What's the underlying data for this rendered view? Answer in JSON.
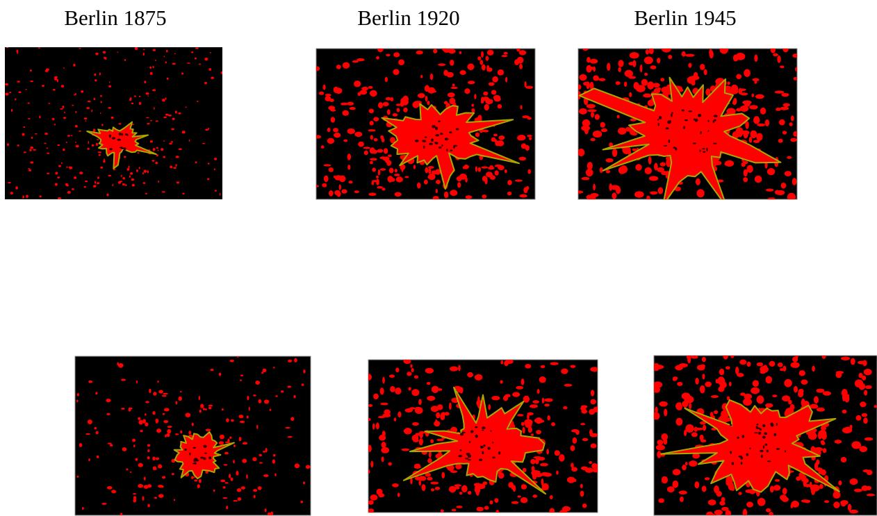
{
  "figure": {
    "labels": [
      "Berlin 1875",
      "Berlin 1920",
      "Berlin 1945"
    ]
  }
}
